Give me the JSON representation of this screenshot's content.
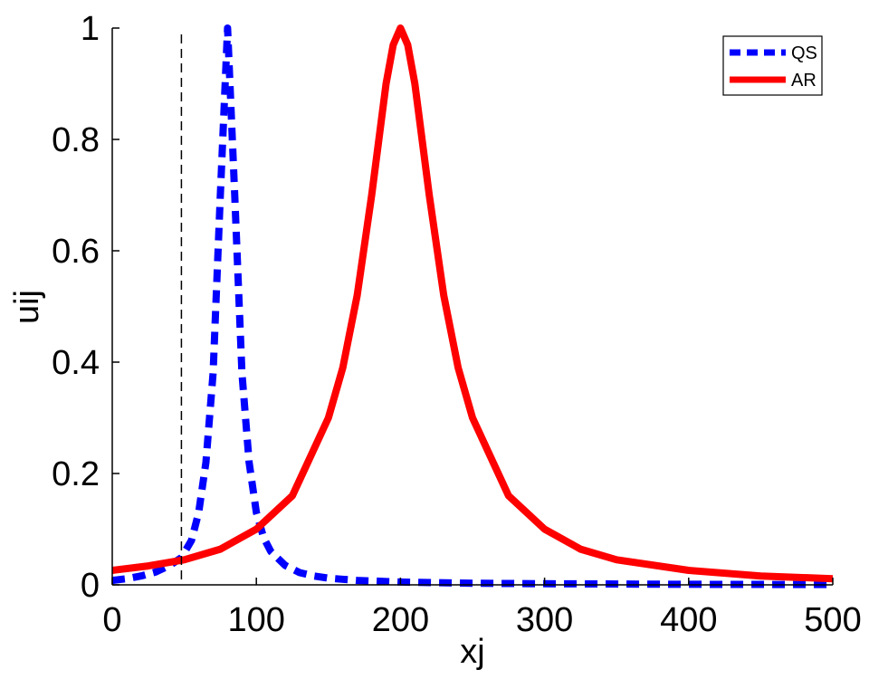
{
  "chart_data": {
    "type": "line",
    "xlabel": "xj",
    "ylabel": "uij",
    "xlim": [
      0,
      500
    ],
    "ylim": [
      0,
      1
    ],
    "xticks": [
      "0",
      "100",
      "200",
      "300",
      "400",
      "500"
    ],
    "yticks": [
      "0",
      "0.2",
      "0.4",
      "0.6",
      "0.8",
      "1"
    ],
    "legend_position": "top-right",
    "vline_x": 48,
    "series": [
      {
        "name": "QS",
        "color": "#0000ff",
        "style": "dashed",
        "x": [
          0,
          10,
          20,
          30,
          40,
          48,
          55,
          60,
          65,
          70,
          75,
          80,
          85,
          90,
          95,
          100,
          105,
          110,
          120,
          130,
          140,
          150,
          170,
          200,
          250,
          300,
          400,
          500
        ],
        "y": [
          0.008,
          0.011,
          0.016,
          0.023,
          0.035,
          0.049,
          0.08,
          0.13,
          0.22,
          0.38,
          0.7,
          1.0,
          0.7,
          0.38,
          0.22,
          0.13,
          0.085,
          0.06,
          0.035,
          0.022,
          0.016,
          0.012,
          0.008,
          0.005,
          0.003,
          0.002,
          0.001,
          0.0005
        ]
      },
      {
        "name": "AR",
        "color": "#ff0000",
        "style": "solid",
        "x": [
          0,
          25,
          50,
          75,
          100,
          125,
          150,
          160,
          170,
          180,
          190,
          195,
          200,
          205,
          210,
          220,
          230,
          240,
          250,
          275,
          300,
          325,
          350,
          400,
          450,
          500
        ],
        "y": [
          0.026,
          0.034,
          0.045,
          0.064,
          0.1,
          0.16,
          0.3,
          0.39,
          0.52,
          0.7,
          0.9,
          0.97,
          1.0,
          0.97,
          0.9,
          0.7,
          0.52,
          0.39,
          0.3,
          0.16,
          0.1,
          0.064,
          0.045,
          0.026,
          0.016,
          0.011
        ]
      }
    ]
  }
}
